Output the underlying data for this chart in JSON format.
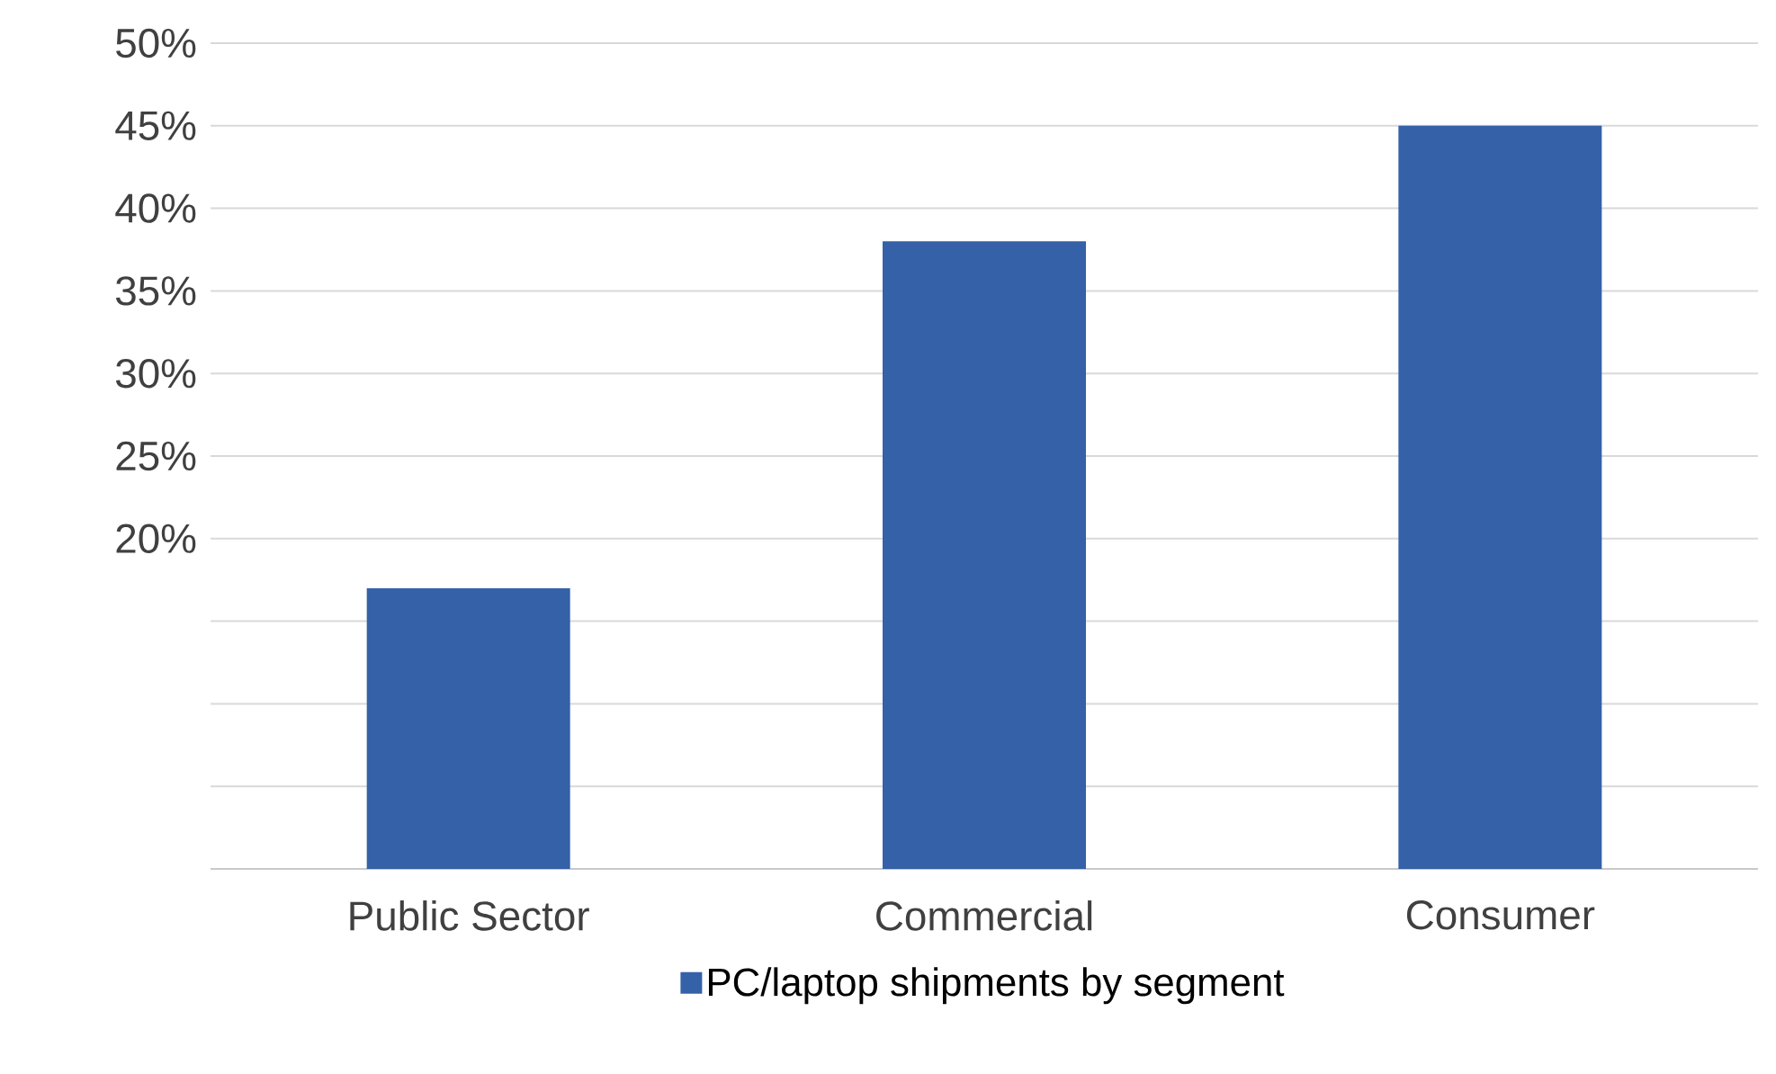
{
  "chart_data": {
    "type": "bar",
    "categories": [
      "Public Sector",
      "Commercial",
      "Consumer"
    ],
    "series": [
      {
        "name": "PC/laptop shipments by segment",
        "color": "#3461a8",
        "values": [
          17,
          38,
          45
        ]
      }
    ],
    "ylim": [
      0,
      50
    ],
    "yticks": [
      {
        "value": 0,
        "label": null
      },
      {
        "value": 5,
        "label": null
      },
      {
        "value": 10,
        "label": null
      },
      {
        "value": 15,
        "label": null
      },
      {
        "value": 20,
        "label": "20%"
      },
      {
        "value": 25,
        "label": "25%"
      },
      {
        "value": 30,
        "label": "30%"
      },
      {
        "value": 35,
        "label": "35%"
      },
      {
        "value": 40,
        "label": "40%"
      },
      {
        "value": 45,
        "label": "45%"
      },
      {
        "value": 50,
        "label": "50%"
      }
    ],
    "grid": "y",
    "legend": "bottom"
  }
}
